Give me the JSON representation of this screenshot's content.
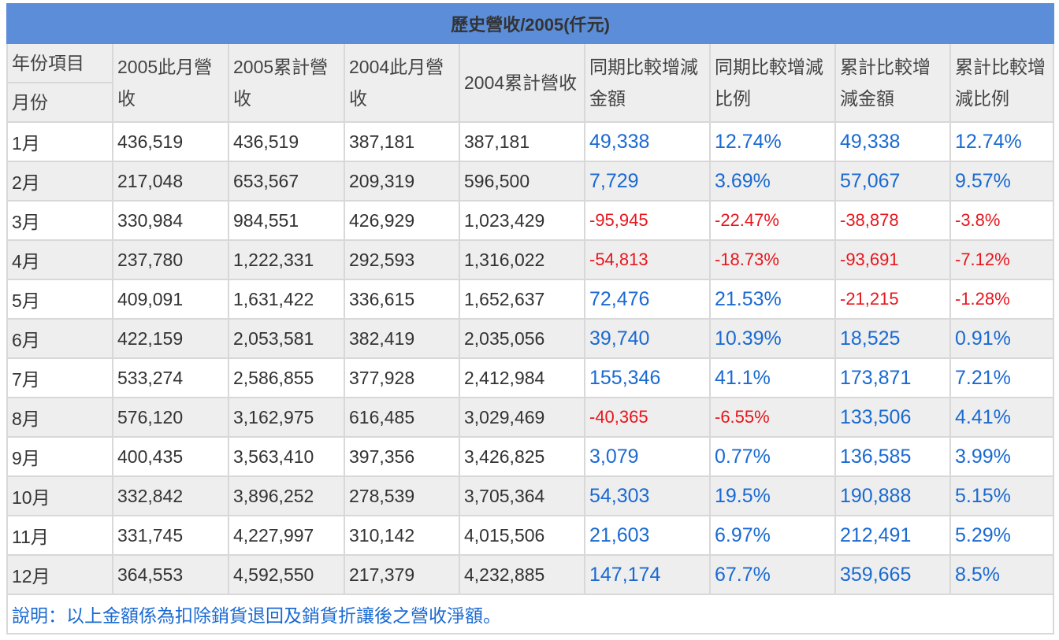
{
  "table": {
    "title": "歷史營收/2005(仟元)",
    "header": {
      "corner_top": "年份項目",
      "corner_bottom": "月份",
      "columns": [
        "2005此月營收",
        "2005累計營收",
        "2004此月營收",
        "2004累計營收",
        "同期比較增減金額",
        "同期比較增減比例",
        "累計比較增減金額",
        "累計比較增減比例"
      ]
    },
    "rows": [
      {
        "month": "1月",
        "values": [
          "436,519",
          "436,519",
          "387,181",
          "387,181",
          "49,338",
          "12.74%",
          "49,338",
          "12.74%"
        ]
      },
      {
        "month": "2月",
        "values": [
          "217,048",
          "653,567",
          "209,319",
          "596,500",
          "7,729",
          "3.69%",
          "57,067",
          "9.57%"
        ]
      },
      {
        "month": "3月",
        "values": [
          "330,984",
          "984,551",
          "426,929",
          "1,023,429",
          "-95,945",
          "-22.47%",
          "-38,878",
          "-3.8%"
        ]
      },
      {
        "month": "4月",
        "values": [
          "237,780",
          "1,222,331",
          "292,593",
          "1,316,022",
          "-54,813",
          "-18.73%",
          "-93,691",
          "-7.12%"
        ]
      },
      {
        "month": "5月",
        "values": [
          "409,091",
          "1,631,422",
          "336,615",
          "1,652,637",
          "72,476",
          "21.53%",
          "-21,215",
          "-1.28%"
        ]
      },
      {
        "month": "6月",
        "values": [
          "422,159",
          "2,053,581",
          "382,419",
          "2,035,056",
          "39,740",
          "10.39%",
          "18,525",
          "0.91%"
        ]
      },
      {
        "month": "7月",
        "values": [
          "533,274",
          "2,586,855",
          "377,928",
          "2,412,984",
          "155,346",
          "41.1%",
          "173,871",
          "7.21%"
        ]
      },
      {
        "month": "8月",
        "values": [
          "576,120",
          "3,162,975",
          "616,485",
          "3,029,469",
          "-40,365",
          "-6.55%",
          "133,506",
          "4.41%"
        ]
      },
      {
        "month": "9月",
        "values": [
          "400,435",
          "3,563,410",
          "397,356",
          "3,426,825",
          "3,079",
          "0.77%",
          "136,585",
          "3.99%"
        ]
      },
      {
        "month": "10月",
        "values": [
          "332,842",
          "3,896,252",
          "278,539",
          "3,705,364",
          "54,303",
          "19.5%",
          "190,888",
          "5.15%"
        ]
      },
      {
        "month": "11月",
        "values": [
          "331,745",
          "4,227,997",
          "310,142",
          "4,015,506",
          "21,603",
          "6.97%",
          "212,491",
          "5.29%"
        ]
      },
      {
        "month": "12月",
        "values": [
          "364,553",
          "4,592,550",
          "217,379",
          "4,232,885",
          "147,174",
          "67.7%",
          "359,665",
          "8.5%"
        ]
      }
    ],
    "note": "說明：以上金額係為扣除銷貨退回及銷貨折讓後之營收淨額。"
  },
  "colors": {
    "title_bar": "#5b8dd9",
    "positive_value": "#1a6ad2",
    "negative_value": "#e8151c",
    "alt_row_background": "#eeeeee",
    "note_text": "#1a6ad2"
  }
}
